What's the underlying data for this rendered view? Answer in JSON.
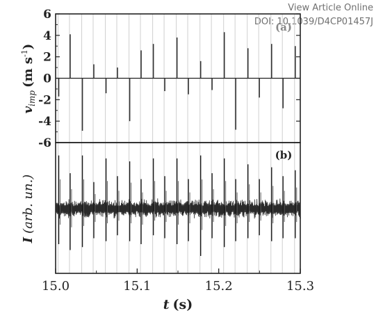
{
  "header": {
    "view_article_label": "View Article Online",
    "doi_text": "DOI: 10.1039/D4CP01457J"
  },
  "chart_data": [
    {
      "type": "bar",
      "panel_label": "(a)",
      "ylabel": "v_imp (m s⁻¹)",
      "ylabel_main": "v",
      "ylabel_sub": "imp",
      "ylabel_unit": "(m s",
      "ylabel_sup": "-1",
      "ylim": [
        -6,
        6
      ],
      "yticks": [
        6,
        4,
        2,
        0,
        -2,
        -4,
        -6
      ],
      "x": [
        15.003,
        15.017,
        15.032,
        15.046,
        15.061,
        15.075,
        15.09,
        15.104,
        15.119,
        15.133,
        15.148,
        15.162,
        15.177,
        15.191,
        15.206,
        15.22,
        15.235,
        15.249,
        15.264,
        15.278,
        15.293
      ],
      "values": [
        -1.7,
        4.1,
        -4.9,
        1.3,
        -1.4,
        1.0,
        -4.0,
        2.6,
        3.2,
        -1.2,
        3.8,
        -1.5,
        1.6,
        -1.1,
        4.3,
        -4.8,
        2.8,
        -1.8,
        3.2,
        -2.8,
        3.0
      ],
      "vlines_x": [
        15.003,
        15.017,
        15.032,
        15.046,
        15.061,
        15.075,
        15.09,
        15.104,
        15.119,
        15.133,
        15.148,
        15.162,
        15.177,
        15.191,
        15.206,
        15.22,
        15.235,
        15.249,
        15.264,
        15.278,
        15.293
      ],
      "grid": false
    },
    {
      "type": "line",
      "panel_label": "(b)",
      "ylabel": "I (arb. un.)",
      "ylabel_main": "I",
      "ylabel_unit": "(arb. un.)",
      "spike_x": [
        15.003,
        15.017,
        15.032,
        15.046,
        15.061,
        15.075,
        15.09,
        15.104,
        15.119,
        15.133,
        15.148,
        15.162,
        15.177,
        15.191,
        15.206,
        15.22,
        15.235,
        15.249,
        15.264,
        15.278,
        15.293
      ],
      "spike_up": [
        0.9,
        0.6,
        0.9,
        0.45,
        0.85,
        0.55,
        0.8,
        0.5,
        0.85,
        0.55,
        0.85,
        0.5,
        0.9,
        0.6,
        0.85,
        0.5,
        0.75,
        0.5,
        0.7,
        0.55,
        0.65
      ],
      "spike_down": [
        0.6,
        0.7,
        0.65,
        0.5,
        0.55,
        0.45,
        0.55,
        0.6,
        0.45,
        0.5,
        0.6,
        0.55,
        0.8,
        0.5,
        0.65,
        0.55,
        0.5,
        0.45,
        0.55,
        0.5,
        0.5
      ],
      "xlabel": "t (s)",
      "xlabel_main": "t",
      "xlabel_unit": "(s)",
      "xlim": [
        15.0,
        15.3
      ],
      "xticks": [
        "15.0",
        "15.1",
        "15.2",
        "15.3"
      ],
      "grid": false
    }
  ]
}
